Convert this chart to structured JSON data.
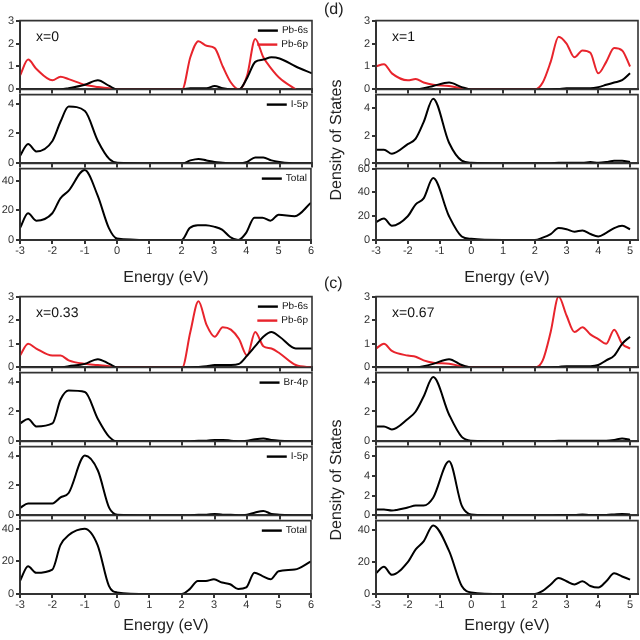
{
  "chart_data": [
    {
      "type": "line",
      "title": "x=0",
      "x": [
        -3,
        -2.75,
        -2.5,
        -2,
        -1.75,
        -1.5,
        -1,
        -0.6,
        -0.25,
        0,
        1,
        2,
        2.25,
        2.5,
        2.75,
        3,
        3.25,
        3.5,
        3.75,
        4,
        4.25,
        4.5,
        4.75,
        5,
        5.5,
        6
      ],
      "xlim": [
        -3,
        6
      ],
      "xticks": [
        -3,
        -2,
        -1,
        0,
        1,
        2,
        3,
        4,
        5,
        6
      ],
      "ylim": [
        0,
        3
      ],
      "yticks": [
        0,
        1,
        2,
        3
      ],
      "tick_labels": "y",
      "legend": "top right",
      "marker": "none",
      "series": [
        {
          "name": "Pb-6s",
          "color": "#000000",
          "values": [
            0,
            0,
            0,
            0,
            0,
            0.05,
            0.2,
            0.4,
            0.15,
            0,
            0,
            0,
            0.05,
            0.05,
            0.05,
            0.15,
            0.05,
            0,
            0,
            0.5,
            1.2,
            1.3,
            1.4,
            1.35,
            1.0,
            0.7
          ]
        },
        {
          "name": "Pb-6p",
          "color": "#e8242c",
          "values": [
            0.6,
            1.3,
            0.9,
            0.4,
            0.55,
            0.45,
            0.2,
            0.1,
            0.05,
            0,
            0,
            0,
            1.4,
            2.1,
            1.9,
            1.8,
            1.0,
            0.3,
            0,
            0.6,
            2.2,
            1.4,
            0.9,
            0.5,
            0,
            null
          ]
        }
      ]
    },
    {
      "type": "line",
      "x": [
        -3,
        -2.75,
        -2.5,
        -2,
        -1.75,
        -1.5,
        -1,
        -0.6,
        -0.25,
        0,
        1,
        2,
        2.25,
        2.5,
        2.75,
        3,
        3.25,
        3.5,
        3.75,
        4,
        4.25,
        4.5,
        4.75,
        5,
        5.5,
        6
      ],
      "xlim": [
        -3,
        6
      ],
      "xticks": [
        -3,
        -2,
        -1,
        0,
        1,
        2,
        3,
        4,
        5,
        6
      ],
      "ylim": [
        0,
        4.6
      ],
      "yticks": [
        0,
        2,
        4
      ],
      "tick_labels": "y",
      "legend": "top right",
      "marker": "none",
      "series": [
        {
          "name": "I-5p",
          "color": "#000000",
          "values": [
            0.5,
            1.3,
            0.8,
            1.5,
            2.8,
            3.8,
            3.5,
            1.5,
            0.3,
            0.05,
            0,
            0,
            0.2,
            0.3,
            0.2,
            0.1,
            0.05,
            0,
            0,
            0.1,
            0.4,
            0.4,
            0.2,
            0.1,
            0,
            0
          ]
        }
      ]
    },
    {
      "type": "line",
      "xlabel": "Energy (eV)",
      "x": [
        -3,
        -2.75,
        -2.5,
        -2,
        -1.75,
        -1.5,
        -1,
        -0.6,
        -0.25,
        0,
        1,
        2,
        2.25,
        2.5,
        2.75,
        3,
        3.25,
        3.5,
        3.75,
        4,
        4.25,
        4.5,
        4.75,
        5,
        5.5,
        6
      ],
      "xlim": [
        -3,
        6
      ],
      "xticks": [
        -3,
        -2,
        -1,
        0,
        1,
        2,
        3,
        4,
        5,
        6
      ],
      "ylim": [
        0,
        48
      ],
      "yticks": [
        0,
        20,
        40
      ],
      "legend": "top right",
      "marker": "none",
      "series": [
        {
          "name": "Total",
          "color": "#000000",
          "values": [
            8,
            18,
            13,
            18,
            28,
            33,
            47,
            30,
            8,
            1,
            0,
            0,
            8,
            10,
            10,
            9,
            7,
            2,
            0,
            5,
            15,
            15,
            13,
            17,
            16,
            25
          ]
        }
      ]
    },
    {
      "type": "line",
      "title": "x=1",
      "annotations": [
        "(d)"
      ],
      "x": [
        -3,
        -2.75,
        -2.5,
        -2,
        -1.75,
        -1.5,
        -1.2,
        -0.7,
        -0.3,
        0,
        1,
        2,
        2.25,
        2.5,
        2.75,
        3,
        3.25,
        3.5,
        3.75,
        4,
        4.25,
        4.5,
        4.75,
        5
      ],
      "xlim": [
        -3,
        5.25
      ],
      "xticks": [
        -3,
        -2,
        -1,
        0,
        1,
        2,
        3,
        4,
        5
      ],
      "ylim": [
        0,
        3
      ],
      "yticks": [
        0,
        1,
        2,
        3
      ],
      "tick_labels": "y",
      "marker": "none",
      "series": [
        {
          "color": "#000000",
          "values": [
            0,
            0,
            0,
            0,
            0,
            0.05,
            0.15,
            0.3,
            0.1,
            0,
            0,
            0,
            0,
            0,
            0.02,
            0.05,
            0.05,
            0.05,
            0.05,
            0.1,
            0.2,
            0.3,
            0.4,
            0.7
          ]
        },
        {
          "color": "#e8242c",
          "values": [
            1.0,
            1.1,
            0.7,
            0.4,
            0.45,
            0.3,
            0.2,
            0.15,
            0.05,
            0,
            0,
            0,
            0.3,
            1.2,
            2.3,
            2.0,
            1.4,
            1.7,
            1.6,
            0.7,
            1.2,
            1.8,
            1.7,
            1.0
          ]
        }
      ]
    },
    {
      "type": "line",
      "ylabel": "Density of States",
      "x": [
        -3,
        -2.75,
        -2.5,
        -2,
        -1.75,
        -1.5,
        -1.2,
        -0.7,
        -0.3,
        0,
        1,
        2,
        2.25,
        2.5,
        2.75,
        3,
        3.25,
        3.5,
        3.75,
        4,
        4.25,
        4.5,
        4.75,
        5
      ],
      "xlim": [
        -3,
        5.25
      ],
      "xticks": [
        -3,
        -2,
        -1,
        0,
        1,
        2,
        3,
        4,
        5
      ],
      "ylim": [
        0,
        5
      ],
      "yticks": [
        0,
        2,
        4
      ],
      "tick_labels": "y",
      "marker": "none",
      "series": [
        {
          "color": "#000000",
          "values": [
            1,
            1,
            0.7,
            1.4,
            1.8,
            3,
            4.7,
            1.5,
            0.2,
            0.05,
            0,
            0,
            0,
            0,
            0.05,
            0.05,
            0.05,
            0.05,
            0.1,
            0.05,
            0.1,
            0.2,
            0.2,
            0.1
          ]
        }
      ]
    },
    {
      "type": "line",
      "xlabel": "Energy (eV)",
      "x": [
        -3,
        -2.75,
        -2.5,
        -2,
        -1.75,
        -1.5,
        -1.2,
        -0.7,
        -0.3,
        0,
        1,
        2,
        2.25,
        2.5,
        2.75,
        3,
        3.25,
        3.5,
        3.75,
        4,
        4.25,
        4.5,
        4.75,
        5
      ],
      "xlim": [
        -3,
        5.25
      ],
      "xticks": [
        -3,
        -2,
        -1,
        0,
        1,
        2,
        3,
        4,
        5
      ],
      "ylim": [
        0,
        60
      ],
      "yticks": [
        0,
        20,
        40,
        60
      ],
      "marker": "none",
      "series": [
        {
          "color": "#000000",
          "values": [
            15,
            18,
            12,
            20,
            30,
            35,
            52,
            20,
            3,
            1,
            0,
            0,
            2,
            5,
            10,
            9,
            7,
            8,
            5,
            3,
            6,
            10,
            12,
            9
          ]
        }
      ]
    },
    {
      "type": "line",
      "title": "x=0.33",
      "x": [
        -3,
        -2.75,
        -2.5,
        -2,
        -1.75,
        -1.5,
        -1,
        -0.6,
        -0.25,
        0,
        1,
        2,
        2.25,
        2.5,
        2.75,
        3,
        3.25,
        3.5,
        3.75,
        4,
        4.25,
        4.5,
        4.75,
        5,
        5.5,
        6
      ],
      "xlim": [
        -3,
        6
      ],
      "xticks": [
        -3,
        -2,
        -1,
        0,
        1,
        2,
        3,
        4,
        5,
        6
      ],
      "ylim": [
        0,
        3
      ],
      "yticks": [
        0,
        1,
        2,
        3
      ],
      "tick_labels": "y",
      "legend": "top right",
      "marker": "none",
      "series": [
        {
          "name": "Pb-6s",
          "color": "#000000",
          "values": [
            0,
            0,
            0,
            0,
            0,
            0.05,
            0.15,
            0.35,
            0.15,
            0,
            0,
            0,
            0,
            0.02,
            0.05,
            0.1,
            0.1,
            0.1,
            0.15,
            0.5,
            0.9,
            1.3,
            1.5,
            1.3,
            0.8,
            0.8
          ]
        },
        {
          "name": "Pb-6p",
          "color": "#e8242c",
          "values": [
            0.5,
            1.0,
            0.8,
            0.5,
            0.5,
            0.3,
            0.15,
            0.1,
            0.05,
            0,
            0,
            0,
            1.5,
            2.8,
            1.8,
            1.3,
            1.7,
            1.6,
            1.2,
            0.5,
            1.5,
            0.9,
            0.8,
            0.6,
            0.1,
            0
          ]
        }
      ]
    },
    {
      "type": "line",
      "x": [
        -3,
        -2.75,
        -2.5,
        -2,
        -1.75,
        -1.5,
        -1,
        -0.6,
        -0.25,
        0,
        1,
        2,
        2.25,
        2.5,
        2.75,
        3,
        3.25,
        3.5,
        3.75,
        4,
        4.25,
        4.5,
        4.75,
        5,
        5.5,
        6
      ],
      "xlim": [
        -3,
        6
      ],
      "xticks": [
        -3,
        -2,
        -1,
        0,
        1,
        2,
        3,
        4,
        5,
        6
      ],
      "ylim": [
        0,
        4.6
      ],
      "yticks": [
        0,
        2,
        4
      ],
      "tick_labels": "y",
      "legend": "top right",
      "marker": "none",
      "series": [
        {
          "name": "Br-4p",
          "color": "#000000",
          "values": [
            1.2,
            1.5,
            1.0,
            1.2,
            2.8,
            3.4,
            3.3,
            1.5,
            0.3,
            0,
            0,
            0,
            0,
            0.05,
            0.05,
            0.1,
            0.1,
            0.05,
            0,
            0.05,
            0.15,
            0.2,
            0.1,
            0.05,
            0,
            0
          ]
        }
      ]
    },
    {
      "type": "line",
      "x": [
        -3,
        -2.75,
        -2.5,
        -2,
        -1.75,
        -1.5,
        -1,
        -0.6,
        -0.25,
        0,
        1,
        2,
        2.25,
        2.5,
        2.75,
        3,
        3.25,
        3.5,
        3.75,
        4,
        4.25,
        4.5,
        4.75,
        5,
        5.5,
        6
      ],
      "xlim": [
        -3,
        6
      ],
      "xticks": [
        -3,
        -2,
        -1,
        0,
        1,
        2,
        3,
        4,
        5,
        6
      ],
      "ylim": [
        0,
        4.6
      ],
      "yticks": [
        0,
        2,
        4
      ],
      "tick_labels": "y",
      "legend": "top right",
      "marker": "none",
      "series": [
        {
          "name": "I-5p",
          "color": "#000000",
          "values": [
            0.5,
            0.8,
            0.8,
            0.8,
            1.2,
            1.5,
            4.0,
            3.0,
            0.5,
            0.05,
            0,
            0,
            0,
            0.05,
            0.05,
            0.1,
            0.05,
            0.05,
            0,
            0.05,
            0.2,
            0.3,
            0.1,
            0.05,
            0,
            0
          ]
        }
      ]
    },
    {
      "type": "line",
      "xlabel": "Energy (eV)",
      "x": [
        -3,
        -2.75,
        -2.5,
        -2,
        -1.75,
        -1.5,
        -1,
        -0.6,
        -0.25,
        0,
        1,
        2,
        2.25,
        2.5,
        2.75,
        3,
        3.25,
        3.5,
        3.75,
        4,
        4.25,
        4.5,
        4.75,
        5,
        5.5,
        6
      ],
      "xlim": [
        -3,
        6
      ],
      "xticks": [
        -3,
        -2,
        -1,
        0,
        1,
        2,
        3,
        4,
        5,
        6
      ],
      "ylim": [
        0,
        45
      ],
      "yticks": [
        0,
        20,
        40
      ],
      "legend": "top right",
      "marker": "none",
      "series": [
        {
          "name": "Total",
          "color": "#000000",
          "values": [
            8,
            17,
            13,
            15,
            30,
            36,
            40,
            30,
            5,
            1,
            0,
            0,
            3,
            8,
            8,
            9,
            7,
            6,
            3,
            4,
            13,
            11,
            9,
            14,
            15,
            20
          ]
        }
      ]
    },
    {
      "type": "line",
      "title": "x=0.67",
      "annotations": [
        "(c)"
      ],
      "x": [
        -3,
        -2.75,
        -2.5,
        -2,
        -1.75,
        -1.5,
        -1.2,
        -0.7,
        -0.3,
        0,
        1,
        2,
        2.25,
        2.5,
        2.75,
        3,
        3.25,
        3.5,
        3.75,
        4,
        4.25,
        4.5,
        4.75,
        5
      ],
      "xlim": [
        -3,
        5.25
      ],
      "xticks": [
        -3,
        -2,
        -1,
        0,
        1,
        2,
        3,
        4,
        5
      ],
      "ylim": [
        0,
        3
      ],
      "yticks": [
        0,
        1,
        2,
        3
      ],
      "tick_labels": "y",
      "marker": "none",
      "series": [
        {
          "color": "#000000",
          "values": [
            0,
            0,
            0,
            0,
            0,
            0.05,
            0.15,
            0.35,
            0.1,
            0,
            0,
            0,
            0,
            0,
            0.02,
            0.05,
            0.05,
            0.05,
            0.05,
            0.1,
            0.3,
            0.5,
            1.0,
            1.3
          ]
        },
        {
          "color": "#e8242c",
          "values": [
            0.8,
            1.0,
            0.7,
            0.5,
            0.45,
            0.3,
            0.2,
            0.15,
            0.05,
            0,
            0,
            0,
            0.3,
            1.5,
            3.0,
            2.2,
            1.5,
            1.7,
            1.4,
            1.2,
            1.0,
            1.6,
            1.0,
            0.8
          ]
        }
      ]
    },
    {
      "type": "line",
      "ylabel": "Density of States",
      "x": [
        -3,
        -2.75,
        -2.5,
        -2,
        -1.75,
        -1.5,
        -1.2,
        -0.7,
        -0.3,
        0,
        1,
        2,
        2.25,
        2.5,
        2.75,
        3,
        3.25,
        3.5,
        3.75,
        4,
        4.25,
        4.5,
        4.75,
        5
      ],
      "xlim": [
        -3,
        5.25
      ],
      "xticks": [
        -3,
        -2,
        -1,
        0,
        1,
        2,
        3,
        4,
        5
      ],
      "ylim": [
        0,
        4.6
      ],
      "yticks": [
        0,
        2,
        4
      ],
      "tick_labels": "y",
      "marker": "none",
      "series": [
        {
          "color": "#000000",
          "values": [
            1,
            1,
            0.8,
            1.5,
            2,
            3,
            4.3,
            1.8,
            0.3,
            0.05,
            0,
            0,
            0,
            0,
            0.05,
            0.05,
            0.05,
            0.05,
            0.05,
            0.05,
            0.05,
            0.1,
            0.2,
            0.1
          ]
        }
      ]
    },
    {
      "type": "line",
      "x": [
        -3,
        -2.75,
        -2.5,
        -2,
        -1.75,
        -1.5,
        -1.2,
        -0.7,
        -0.3,
        0,
        1,
        2,
        2.25,
        2.5,
        2.75,
        3,
        3.25,
        3.5,
        3.75,
        4,
        4.25,
        4.5,
        4.75,
        5
      ],
      "xlim": [
        -3,
        5.25
      ],
      "xticks": [
        -3,
        -2,
        -1,
        0,
        1,
        2,
        3,
        4,
        5
      ],
      "ylim": [
        0,
        7
      ],
      "yticks": [
        0,
        2,
        4,
        6
      ],
      "tick_labels": "y",
      "marker": "none",
      "series": [
        {
          "color": "#000000",
          "values": [
            0.6,
            0.6,
            0.5,
            0.8,
            1,
            1,
            1.8,
            5.5,
            1.0,
            0.1,
            0,
            0,
            0,
            0,
            0.05,
            0.05,
            0.05,
            0.1,
            0.05,
            0.05,
            0.05,
            0.1,
            0.15,
            0.1
          ]
        }
      ]
    },
    {
      "type": "line",
      "xlabel": "Energy (eV)",
      "x": [
        -3,
        -2.75,
        -2.5,
        -2,
        -1.75,
        -1.5,
        -1.2,
        -0.7,
        -0.3,
        0,
        1,
        2,
        2.25,
        2.5,
        2.75,
        3,
        3.25,
        3.5,
        3.75,
        4,
        4.25,
        4.5,
        4.75,
        5
      ],
      "xlim": [
        -3,
        5.25
      ],
      "xticks": [
        -3,
        -2,
        -1,
        0,
        1,
        2,
        3,
        4,
        5
      ],
      "ylim": [
        0,
        46
      ],
      "yticks": [
        0,
        20,
        40
      ],
      "marker": "none",
      "series": [
        {
          "color": "#000000",
          "values": [
            13,
            17,
            12,
            20,
            28,
            33,
            43,
            27,
            5,
            1,
            0,
            0,
            2,
            6,
            10,
            8,
            6,
            8,
            5,
            4,
            8,
            13,
            11,
            9
          ]
        }
      ]
    }
  ]
}
